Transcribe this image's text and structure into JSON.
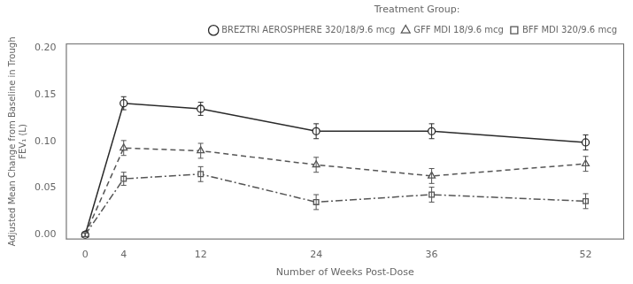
{
  "chart_data": {
    "type": "line",
    "xlabel": "Number of Weeks Post-Dose",
    "ylabel": "Adjusted Mean Change from Baseline in Trough\nFEV₁ (L)",
    "x": [
      0,
      4,
      12,
      24,
      36,
      52
    ],
    "series": [
      {
        "name": "BREZTRI AEROSPHERE 320/18/9.6 mcg",
        "color": "#2a2a2a",
        "line_style": "solid",
        "marker": "circle",
        "values": [
          0.0,
          0.141,
          0.135,
          0.111,
          0.111,
          0.099
        ],
        "errors": [
          0.002,
          0.007,
          0.007,
          0.008,
          0.008,
          0.008
        ]
      },
      {
        "name": "GFF MDI 18/9.6 mcg",
        "color": "#555555",
        "line_style": "dashed",
        "marker": "triangle",
        "values": [
          0.0,
          0.093,
          0.09,
          0.075,
          0.063,
          0.076
        ],
        "errors": [
          0.002,
          0.008,
          0.008,
          0.008,
          0.008,
          0.008
        ]
      },
      {
        "name": "BFF MDI 320/9.6 mcg",
        "color": "#555555",
        "line_style": "dashdot",
        "marker": "square",
        "values": [
          0.0,
          0.06,
          0.065,
          0.035,
          0.043,
          0.036
        ],
        "errors": [
          0.002,
          0.007,
          0.008,
          0.008,
          0.008,
          0.008
        ]
      }
    ],
    "xlim": [
      -2,
      56
    ],
    "xticks": [
      0,
      4,
      12,
      24,
      36,
      52
    ],
    "ylim": [
      -0.005,
      0.205
    ],
    "yticks": [
      {
        "value": 0,
        "label": "0.00"
      },
      0.05,
      {
        "value": 0.1,
        "label": "0.10"
      },
      0.15,
      {
        "value": 0.2,
        "label": "0.20"
      }
    ],
    "legend_title": "Treatment Group:",
    "legend": "upper right",
    "grid": false
  }
}
